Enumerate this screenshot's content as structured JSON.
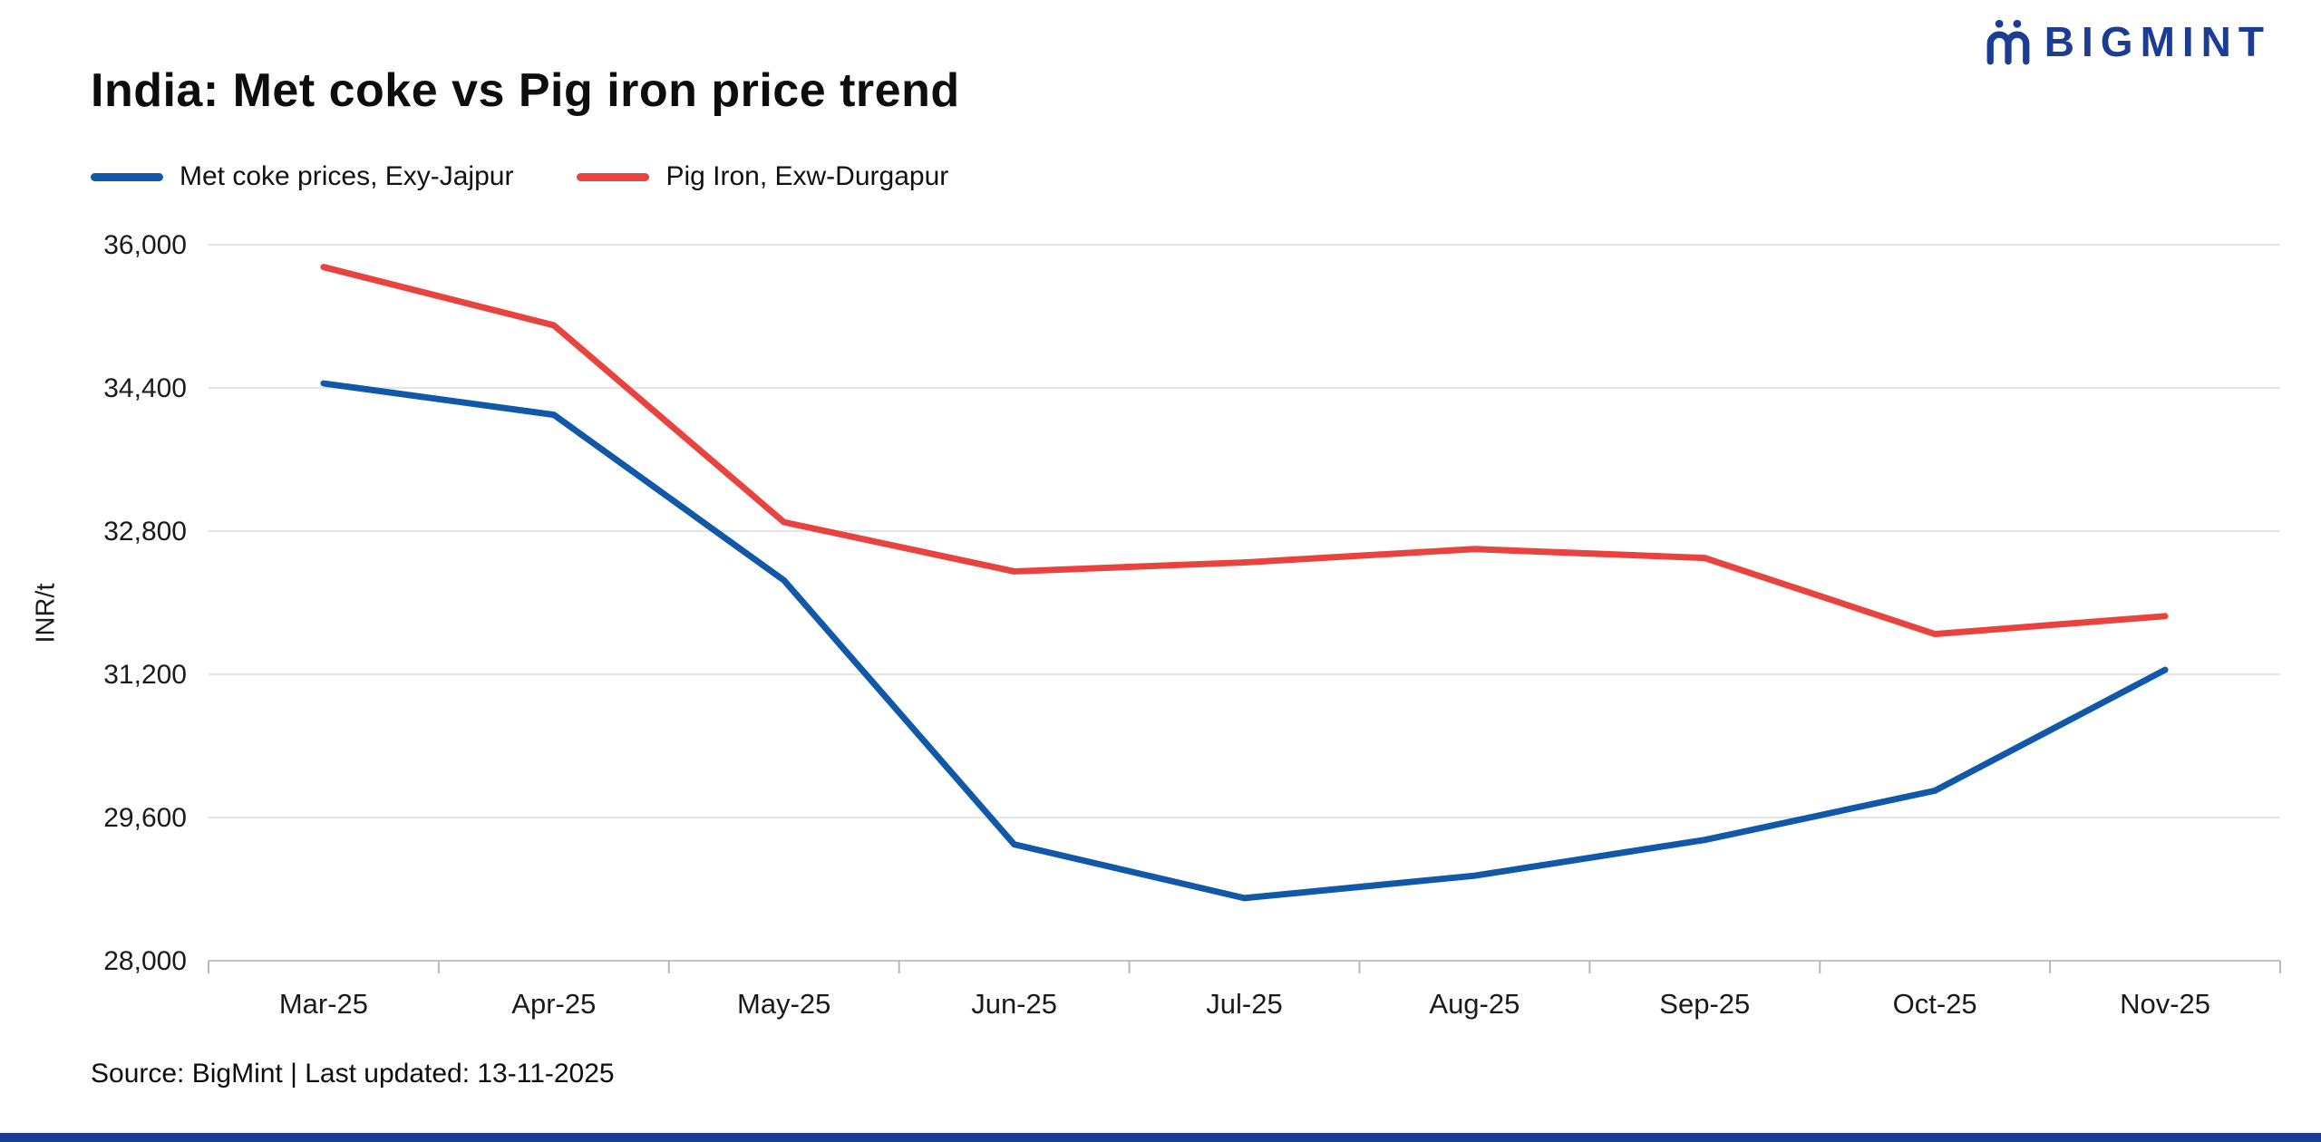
{
  "header": {
    "title": "India: Met coke vs Pig iron price trend",
    "brand": "BIGMINT"
  },
  "legend": [
    {
      "label": "Met coke prices, Exy-Jajpur",
      "color": "#1159a8"
    },
    {
      "label": "Pig Iron, Exw-Durgapur",
      "color": "#e8433f"
    }
  ],
  "chart_data": {
    "type": "line",
    "categories": [
      "Mar-25",
      "Apr-25",
      "May-25",
      "Jun-25",
      "Jul-25",
      "Aug-25",
      "Sep-25",
      "Oct-25",
      "Nov-25"
    ],
    "series": [
      {
        "name": "Met coke prices, Exy-Jajpur",
        "color": "#1159a8",
        "values": [
          34450,
          34100,
          32250,
          29300,
          28700,
          28950,
          29350,
          29900,
          31250
        ]
      },
      {
        "name": "Pig Iron, Exw-Durgapur",
        "color": "#e8433f",
        "values": [
          35750,
          35100,
          32900,
          32350,
          32450,
          32600,
          32500,
          31650,
          31850
        ]
      }
    ],
    "title": "India: Met coke vs Pig iron price trend",
    "xlabel": "",
    "ylabel": "INR/t",
    "ylim": [
      28000,
      36000
    ],
    "yticks": [
      28000,
      29600,
      31200,
      32800,
      34400,
      36000
    ],
    "grid": true,
    "legend_position": "top-left"
  },
  "footer": {
    "source": "Source: BigMint | Last updated: 13-11-2025"
  }
}
